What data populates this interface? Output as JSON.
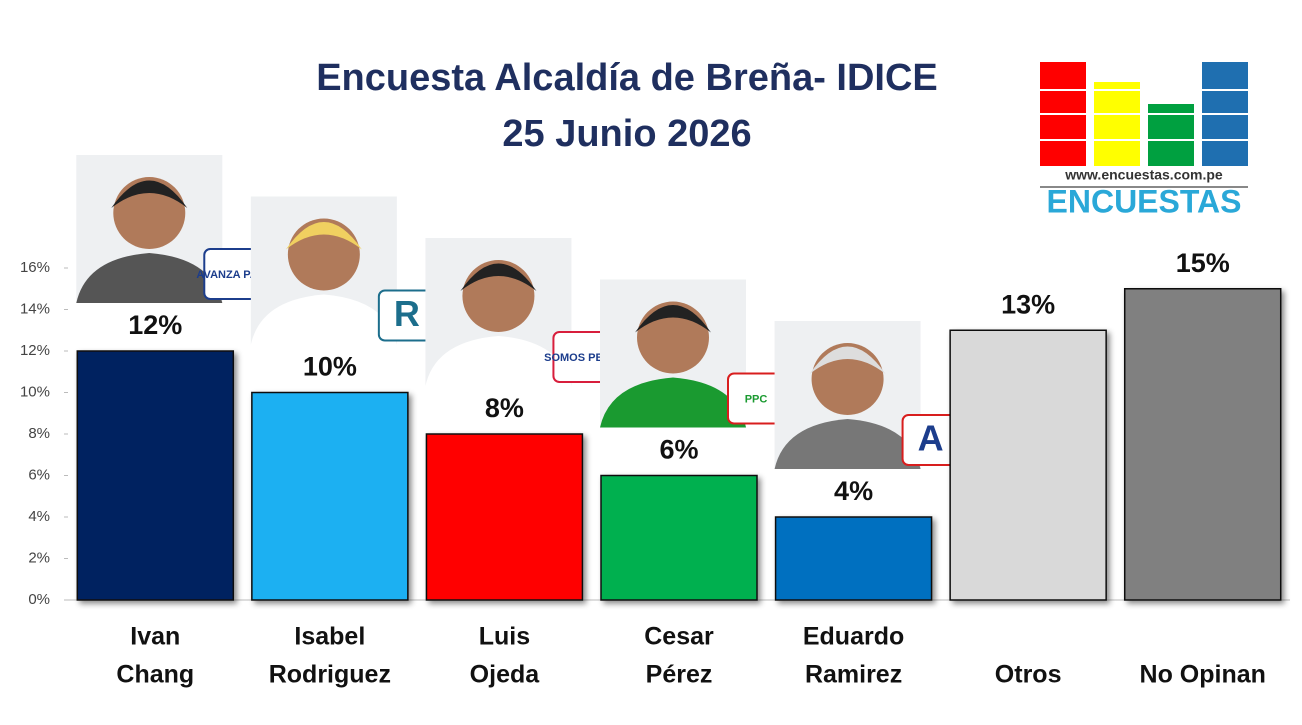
{
  "chart_data": {
    "type": "bar",
    "title": "Encuesta Alcaldía de Breña- IDICE",
    "subtitle": "25 Junio 2026",
    "categories": [
      [
        "Ivan",
        "Chang"
      ],
      [
        "Isabel",
        "Rodriguez"
      ],
      [
        "Luis",
        "Ojeda"
      ],
      [
        "Cesar",
        "Pérez"
      ],
      [
        "Eduardo",
        "Ramirez"
      ],
      [
        "Otros"
      ],
      [
        "No Opinan"
      ]
    ],
    "values": [
      12,
      10,
      8,
      6,
      4,
      13,
      15
    ],
    "value_labels": [
      "12%",
      "10%",
      "8%",
      "6%",
      "4%",
      "13%",
      "15%"
    ],
    "colors": [
      "#002060",
      "#1ab0f2",
      "#ff0000",
      "#00b050",
      "#0070c0",
      "#d9d9d9",
      "#808080"
    ],
    "party_labels": [
      "AVANZA PAÍS",
      "R",
      "SOMOS PERU",
      "PPC",
      "A"
    ],
    "ylim": [
      0,
      16
    ],
    "yticks": [
      {
        "value": 0,
        "label": "0%"
      },
      {
        "value": 2,
        "label": "2%"
      },
      {
        "value": 4,
        "label": "4%"
      },
      {
        "value": 6,
        "label": "6%"
      },
      {
        "value": 8,
        "label": "8%"
      },
      {
        "value": 10,
        "label": "10%"
      },
      {
        "value": 12,
        "label": "12%"
      },
      {
        "value": 14,
        "label": "14%"
      },
      {
        "value": 16,
        "label": "16%"
      }
    ],
    "logo": {
      "url": "www.encuestas.com.pe",
      "name": "ENCUESTAS"
    }
  }
}
